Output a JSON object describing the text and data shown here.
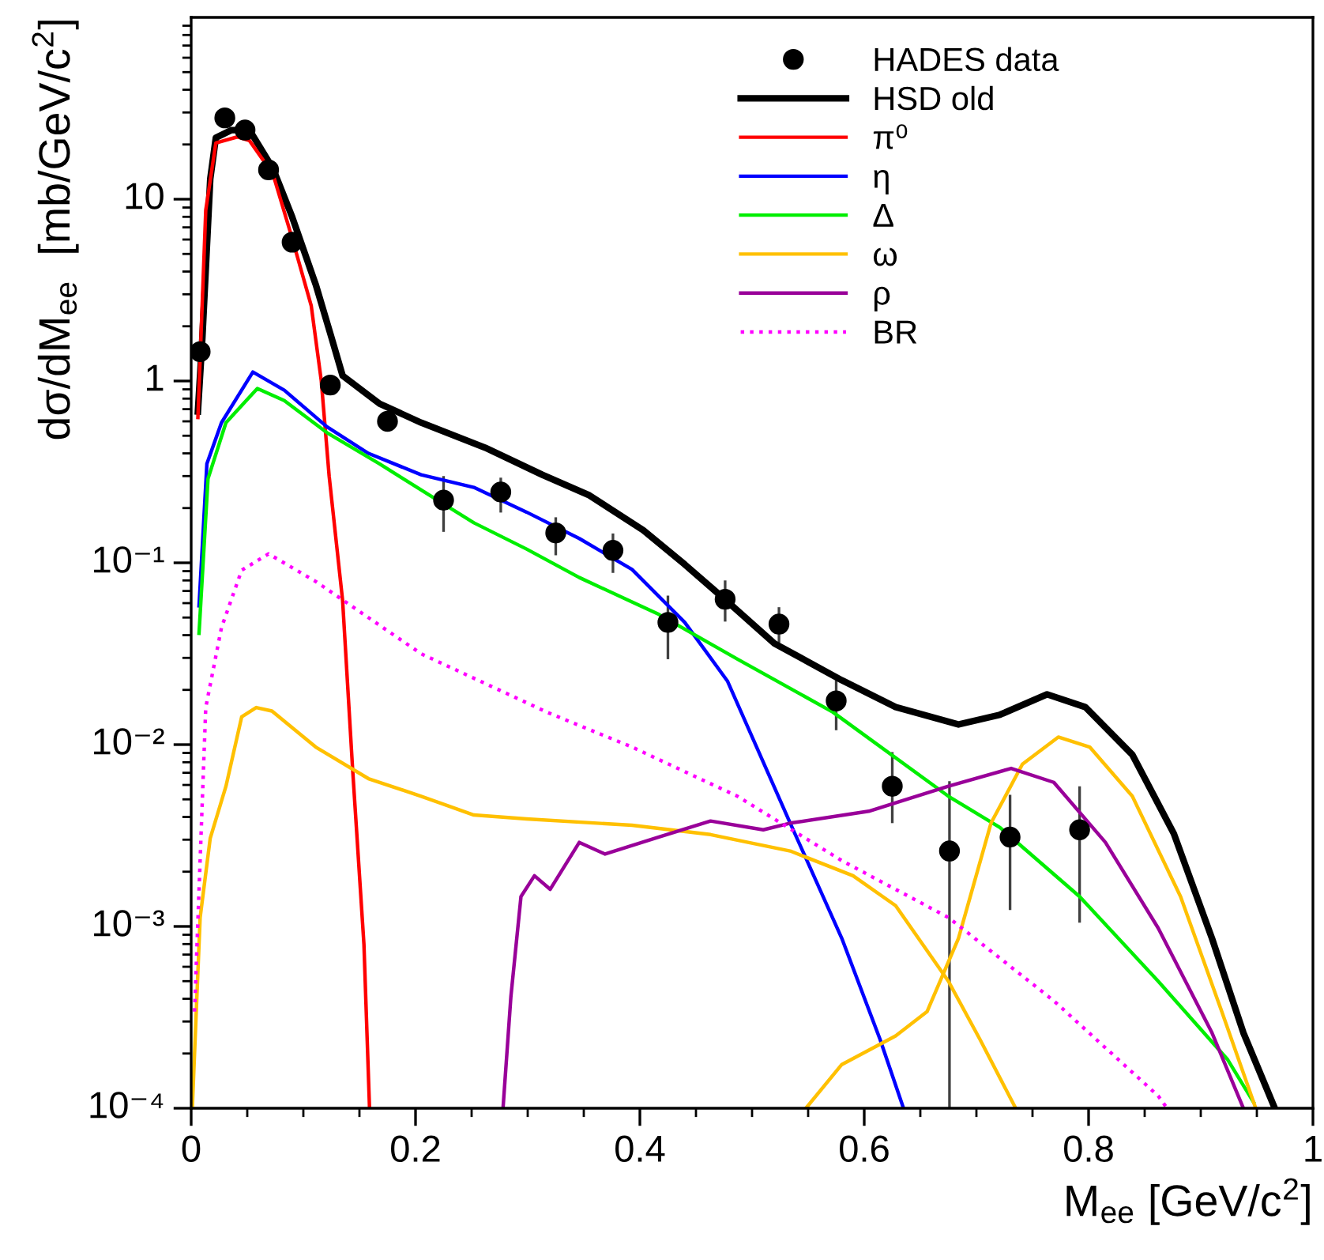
{
  "chart_data": {
    "type": "line",
    "xlabel": "M$_{ee}$ [GeV/c$^{2}$]",
    "ylabel": "dσ/dM$_{ee}$  [mb/GeV/c$^{2}$]",
    "log": "y",
    "xlim": [
      0,
      1
    ],
    "ylim": [
      0.0001,
      100
    ],
    "xticks": [
      0,
      0.2,
      0.4,
      0.6,
      0.8,
      1
    ],
    "yticks": [
      {
        "value": 0.0001,
        "label": "10⁻⁴"
      },
      {
        "value": 0.001,
        "label": "10⁻³"
      },
      {
        "value": 0.01,
        "label": "10⁻²"
      },
      {
        "value": 0.1,
        "label": "10⁻¹"
      },
      1,
      10
    ],
    "legend": "top right",
    "grid": false,
    "series": [
      {
        "name": "HADES data",
        "type": "scatter",
        "marker": "circle",
        "color": "#000000",
        "x": [
          0.008,
          0.03,
          0.048,
          0.069,
          0.09,
          0.124,
          0.175,
          0.225,
          0.276,
          0.325,
          0.376,
          0.425,
          0.476,
          0.524,
          0.575,
          0.625,
          0.676,
          0.73,
          0.792
        ],
        "values": [
          1.45,
          28,
          24,
          14.5,
          5.8,
          0.95,
          0.6,
          0.221,
          0.245,
          0.146,
          0.117,
          0.047,
          0.063,
          0.046,
          0.0174,
          0.0059,
          0.0026,
          0.0031,
          0.0034
        ],
        "errors": [
          null,
          null,
          null,
          null,
          null,
          null,
          null,
          [
            0.148,
            0.3
          ],
          [
            0.189,
            0.294
          ],
          [
            0.11,
            0.178
          ],
          [
            0.088,
            0.145
          ],
          [
            0.0295,
            0.066
          ],
          [
            0.0475,
            0.08
          ],
          [
            0.0362,
            0.057
          ],
          [
            0.012,
            0.0225
          ],
          [
            0.0037,
            0.0091
          ],
          [
            0.0001,
            0.0063
          ],
          [
            0.00123,
            0.0053
          ],
          [
            0.00105,
            0.0059
          ]
        ]
      },
      {
        "name": "HSD old",
        "color": "#000000",
        "x": [
          0.006,
          0.01,
          0.017,
          0.022,
          0.036,
          0.052,
          0.073,
          0.09,
          0.111,
          0.125,
          0.135,
          0.168,
          0.205,
          0.262,
          0.313,
          0.355,
          0.403,
          0.44,
          0.477,
          0.52,
          0.58,
          0.628,
          0.684,
          0.721,
          0.763,
          0.797,
          0.839,
          0.876,
          0.91,
          0.938,
          0.966
        ],
        "values": [
          0.68,
          1.74,
          12.9,
          21.8,
          24,
          24,
          14.7,
          8,
          3.4,
          1.74,
          1.07,
          0.75,
          0.59,
          0.43,
          0.305,
          0.235,
          0.151,
          0.098,
          0.062,
          0.036,
          0.0226,
          0.0161,
          0.0129,
          0.0146,
          0.0189,
          0.0161,
          0.0088,
          0.00324,
          0.00086,
          0.00026,
          0.0001
        ]
      },
      {
        "name": "π⁰",
        "color": "#ff0000",
        "x": [
          0.006,
          0.013,
          0.022,
          0.041,
          0.052,
          0.073,
          0.09,
          0.107,
          0.116,
          0.123,
          0.135,
          0.144,
          0.154,
          0.159
        ],
        "values": [
          0.63,
          8.7,
          20.4,
          22,
          21,
          13.7,
          6.1,
          2.6,
          1,
          0.3,
          0.062,
          0.0072,
          0.0008,
          0.0001
        ]
      },
      {
        "name": "η",
        "color": "#0000ff",
        "x": [
          0.007,
          0.014,
          0.027,
          0.055,
          0.083,
          0.121,
          0.158,
          0.205,
          0.252,
          0.299,
          0.346,
          0.393,
          0.44,
          0.478,
          0.534,
          0.58,
          0.614,
          0.635
        ],
        "values": [
          0.058,
          0.35,
          0.59,
          1.12,
          0.89,
          0.56,
          0.4,
          0.305,
          0.26,
          0.19,
          0.136,
          0.092,
          0.047,
          0.0224,
          0.0037,
          0.00086,
          0.00024,
          0.0001
        ]
      },
      {
        "name": "Δ",
        "color": "#00ee00",
        "x": [
          0.007,
          0.015,
          0.031,
          0.059,
          0.083,
          0.121,
          0.168,
          0.22,
          0.252,
          0.299,
          0.346,
          0.417,
          0.487,
          0.572,
          0.675,
          0.721,
          0.792,
          0.862,
          0.924,
          0.947
        ],
        "values": [
          0.041,
          0.29,
          0.59,
          0.91,
          0.78,
          0.52,
          0.35,
          0.22,
          0.166,
          0.119,
          0.083,
          0.052,
          0.0295,
          0.0151,
          0.0052,
          0.0035,
          0.00146,
          0.0005,
          0.000185,
          0.000108
        ]
      },
      {
        "name": "ω",
        "color": "#ffc000",
        "x": [
          0.001,
          0.008,
          0.017,
          0.031,
          0.045,
          0.058,
          0.072,
          0.111,
          0.158,
          0.205,
          0.252,
          0.299,
          0.393,
          0.463,
          0.534,
          0.59,
          0.628,
          0.675,
          0.703,
          0.735
        ],
        "values": [
          0.0001,
          0.00112,
          0.00306,
          0.0059,
          0.0142,
          0.016,
          0.0153,
          0.0097,
          0.0065,
          0.0052,
          0.0041,
          0.0039,
          0.0036,
          0.0032,
          0.0026,
          0.0019,
          0.0013,
          0.0005,
          0.00024,
          0.0001
        ]
      },
      {
        "color": "#ffc000",
        "x": [
          0.548,
          0.58,
          0.628,
          0.656,
          0.684,
          0.713,
          0.741,
          0.773,
          0.801,
          0.839,
          0.882,
          0.918,
          0.949
        ],
        "values": [
          0.0001,
          0.000174,
          0.00025,
          0.00034,
          0.00086,
          0.0037,
          0.0078,
          0.011,
          0.0097,
          0.0052,
          0.00146,
          0.00035,
          0.0001
        ]
      },
      {
        "name": "ρ",
        "color": "#990099",
        "x": [
          0.278,
          0.285,
          0.294,
          0.306,
          0.32,
          0.346,
          0.369,
          0.417,
          0.463,
          0.51,
          0.534,
          0.604,
          0.675,
          0.731,
          0.769,
          0.815,
          0.862,
          0.91,
          0.938
        ],
        "values": [
          0.0001,
          0.00041,
          0.00146,
          0.0019,
          0.0016,
          0.0029,
          0.0025,
          0.0031,
          0.0038,
          0.0034,
          0.0037,
          0.0043,
          0.0059,
          0.0074,
          0.0062,
          0.0029,
          0.00098,
          0.00026,
          0.0001
        ]
      },
      {
        "name": "BR",
        "color": "#ff00ff",
        "line_style": "dotted",
        "x": [
          0.003,
          0.013,
          0.027,
          0.045,
          0.069,
          0.111,
          0.205,
          0.318,
          0.393,
          0.487,
          0.58,
          0.675,
          0.769,
          0.862,
          0.87
        ],
        "values": [
          0.00034,
          0.016,
          0.044,
          0.091,
          0.112,
          0.079,
          0.0316,
          0.015,
          0.0097,
          0.0052,
          0.0023,
          0.00112,
          0.00039,
          0.000117,
          0.0001
        ]
      }
    ]
  }
}
